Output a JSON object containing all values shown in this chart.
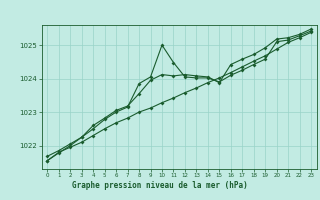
{
  "title": "Graphe pression niveau de la mer (hPa)",
  "bg_color": "#c2ebe3",
  "plot_bg_color": "#c2ebe3",
  "label_bg_color": "#2d7a4f",
  "grid_color": "#99d4c8",
  "line_color": "#1a5c2e",
  "label_text_color": "#1a5c2e",
  "xlim": [
    -0.5,
    23.5
  ],
  "ylim": [
    1021.3,
    1025.6
  ],
  "yticks": [
    1022,
    1023,
    1024,
    1025
  ],
  "xticks": [
    0,
    1,
    2,
    3,
    4,
    5,
    6,
    7,
    8,
    9,
    10,
    11,
    12,
    13,
    14,
    15,
    16,
    17,
    18,
    19,
    20,
    21,
    22,
    23
  ],
  "series1_x": [
    0,
    1,
    2,
    3,
    4,
    5,
    6,
    7,
    8,
    9,
    10,
    11,
    12,
    13,
    14,
    15,
    16,
    17,
    18,
    19,
    20,
    21,
    22,
    23
  ],
  "series1_y": [
    1021.55,
    1021.8,
    1021.95,
    1022.1,
    1022.3,
    1022.5,
    1022.68,
    1022.82,
    1023.0,
    1023.12,
    1023.28,
    1023.42,
    1023.58,
    1023.72,
    1023.88,
    1024.02,
    1024.18,
    1024.35,
    1024.52,
    1024.68,
    1024.88,
    1025.08,
    1025.22,
    1025.38
  ],
  "series2_x": [
    0,
    1,
    2,
    3,
    4,
    5,
    6,
    7,
    8,
    9,
    10,
    11,
    12,
    13,
    14,
    15,
    16,
    17,
    18,
    19,
    20,
    21,
    22,
    23
  ],
  "series2_y": [
    1021.68,
    1021.85,
    1022.05,
    1022.25,
    1022.5,
    1022.78,
    1023.0,
    1023.15,
    1023.85,
    1024.05,
    1025.0,
    1024.48,
    1024.05,
    1024.02,
    1024.02,
    1023.9,
    1024.1,
    1024.25,
    1024.42,
    1024.58,
    1025.1,
    1025.15,
    1025.28,
    1025.42
  ],
  "series3_x": [
    0,
    1,
    2,
    3,
    4,
    5,
    6,
    7,
    8,
    9,
    10,
    11,
    12,
    13,
    14,
    15,
    16,
    17,
    18,
    19,
    20,
    21,
    22,
    23
  ],
  "series3_y": [
    1021.55,
    1021.78,
    1022.0,
    1022.25,
    1022.6,
    1022.82,
    1023.05,
    1023.18,
    1023.55,
    1023.95,
    1024.12,
    1024.08,
    1024.12,
    1024.08,
    1024.05,
    1023.88,
    1024.42,
    1024.58,
    1024.72,
    1024.92,
    1025.18,
    1025.22,
    1025.32,
    1025.48
  ]
}
